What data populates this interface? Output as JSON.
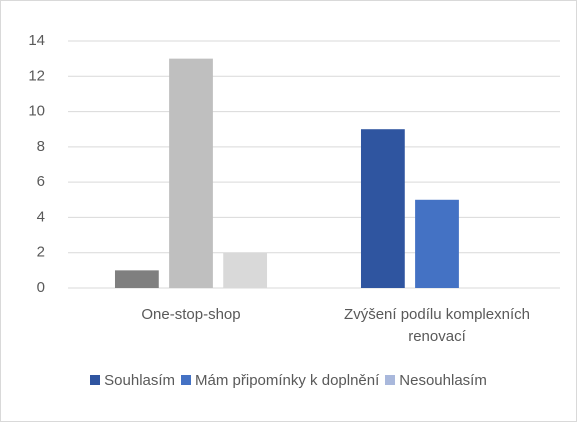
{
  "chart_data": {
    "type": "bar",
    "categories": [
      "One-stop-shop",
      "Zvýšení podílu komplexních renovací"
    ],
    "series": [
      {
        "name": "Souhlasím",
        "color": "#2f55a0",
        "colors": [
          "#7f7f7f",
          "#2f55a0"
        ],
        "values": [
          1,
          9
        ]
      },
      {
        "name": "Mám připomínky k doplnění",
        "color": "#4472c4",
        "colors": [
          "#bfbfbf",
          "#4472c4"
        ],
        "values": [
          13,
          5
        ]
      },
      {
        "name": "Nesouhlasím",
        "color": "#a9b8dc",
        "colors": [
          "#d9d9d9",
          "#a9b8dc"
        ],
        "values": [
          2,
          0
        ]
      }
    ],
    "ylim": [
      0,
      14
    ],
    "yticks": [
      0,
      2,
      4,
      6,
      8,
      10,
      12,
      14
    ],
    "grid": true,
    "legend": "bottom"
  }
}
